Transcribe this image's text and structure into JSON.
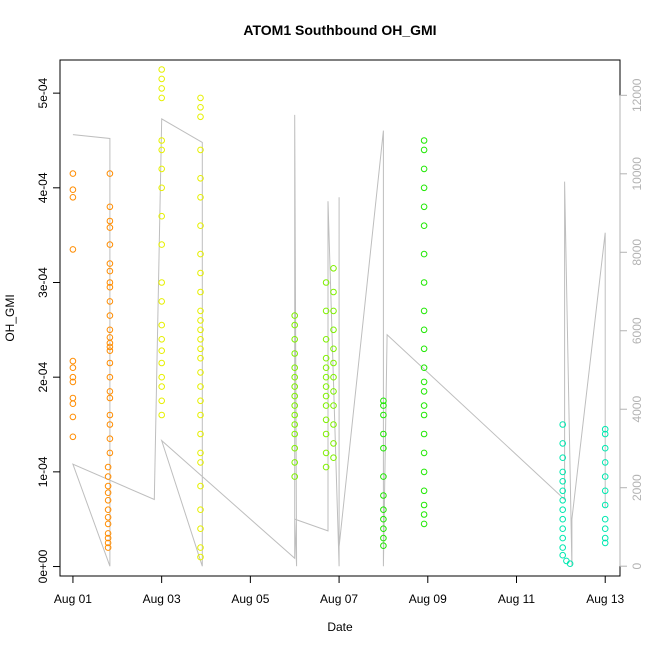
{
  "chart_data": {
    "type": "scatter",
    "title": "ATOM1 Southbound OH_GMI",
    "xlabel": "Date",
    "ylabel": "OH_GMI",
    "x_axis": {
      "type": "date",
      "range": [
        "2016-07-31T17:00",
        "2016-08-13T08:00"
      ],
      "ticks": [
        {
          "value": "2016-08-01",
          "label": "Aug 01"
        },
        {
          "value": "2016-08-03",
          "label": "Aug 03"
        },
        {
          "value": "2016-08-05",
          "label": "Aug 05"
        },
        {
          "value": "2016-08-07",
          "label": "Aug 07"
        },
        {
          "value": "2016-08-09",
          "label": "Aug 09"
        },
        {
          "value": "2016-08-11",
          "label": "Aug 11"
        },
        {
          "value": "2016-08-13",
          "label": "Aug 13"
        }
      ]
    },
    "y_axis": {
      "range": [
        -1e-05,
        0.000535
      ],
      "ticks": [
        {
          "value": 0,
          "label": "0e+00"
        },
        {
          "value": 0.0001,
          "label": "1e-04"
        },
        {
          "value": 0.0002,
          "label": "2e-04"
        },
        {
          "value": 0.0003,
          "label": "3e-04"
        },
        {
          "value": 0.0004,
          "label": "4e-04"
        },
        {
          "value": 0.0005,
          "label": "5e-04"
        }
      ]
    },
    "y2_axis": {
      "range": [
        -250,
        12900
      ],
      "ticks": [
        {
          "value": 0,
          "label": "0"
        },
        {
          "value": 2000,
          "label": "2000"
        },
        {
          "value": 4000,
          "label": "4000"
        },
        {
          "value": 6000,
          "label": "6000"
        },
        {
          "value": 8000,
          "label": "8000"
        },
        {
          "value": 10000,
          "label": "10000"
        },
        {
          "value": 12000,
          "label": "12000"
        }
      ]
    },
    "grid": false,
    "legend": "none",
    "colors": {
      "line": "#bebebe",
      "right_axis": "#b3b3b3"
    },
    "series": [
      {
        "color": "#ff8c00",
        "points": [
          [
            "2016-08-01T00:00",
            0.000415
          ],
          [
            "2016-08-01T00:00",
            0.000398
          ],
          [
            "2016-08-01T00:00",
            0.00039
          ],
          [
            "2016-08-01T00:00",
            0.000335
          ],
          [
            "2016-08-01T00:00",
            0.000217
          ],
          [
            "2016-08-01T00:00",
            0.00021
          ],
          [
            "2016-08-01T00:00",
            0.0002
          ],
          [
            "2016-08-01T00:00",
            0.000195
          ],
          [
            "2016-08-01T00:00",
            0.000178
          ],
          [
            "2016-08-01T00:00",
            0.000172
          ],
          [
            "2016-08-01T00:00",
            0.000158
          ],
          [
            "2016-08-01T00:00",
            0.000137
          ],
          [
            "2016-08-01T20:00",
            0.000415
          ],
          [
            "2016-08-01T20:00",
            0.00038
          ],
          [
            "2016-08-01T20:00",
            0.000365
          ],
          [
            "2016-08-01T20:00",
            0.000358
          ],
          [
            "2016-08-01T20:00",
            0.00034
          ],
          [
            "2016-08-01T20:00",
            0.00032
          ],
          [
            "2016-08-01T20:00",
            0.000312
          ],
          [
            "2016-08-01T20:00",
            0.0003
          ],
          [
            "2016-08-01T20:00",
            0.000295
          ],
          [
            "2016-08-01T20:00",
            0.00028
          ],
          [
            "2016-08-01T20:00",
            0.000265
          ],
          [
            "2016-08-01T20:00",
            0.00025
          ],
          [
            "2016-08-01T20:00",
            0.000242
          ],
          [
            "2016-08-01T20:00",
            0.000236
          ],
          [
            "2016-08-01T20:00",
            0.000232
          ],
          [
            "2016-08-01T20:00",
            0.000228
          ],
          [
            "2016-08-01T20:00",
            0.000215
          ],
          [
            "2016-08-01T20:00",
            0.0002
          ],
          [
            "2016-08-01T20:00",
            0.000185
          ],
          [
            "2016-08-01T20:00",
            0.000178
          ],
          [
            "2016-08-01T20:00",
            0.00016
          ],
          [
            "2016-08-01T20:00",
            0.00015
          ],
          [
            "2016-08-01T20:00",
            0.000135
          ],
          [
            "2016-08-01T20:00",
            0.00012
          ],
          [
            "2016-08-01T19:00",
            0.000105
          ],
          [
            "2016-08-01T19:00",
            9.5e-05
          ],
          [
            "2016-08-01T19:00",
            8.5e-05
          ],
          [
            "2016-08-01T19:00",
            7.8e-05
          ],
          [
            "2016-08-01T19:00",
            7e-05
          ],
          [
            "2016-08-01T19:00",
            6e-05
          ],
          [
            "2016-08-01T19:00",
            5.2e-05
          ],
          [
            "2016-08-01T19:00",
            4.5e-05
          ],
          [
            "2016-08-01T19:00",
            3.5e-05
          ],
          [
            "2016-08-01T19:00",
            3e-05
          ],
          [
            "2016-08-01T19:00",
            2.5e-05
          ],
          [
            "2016-08-01T19:00",
            2e-05
          ]
        ]
      },
      {
        "color": "#e6f000",
        "points": [
          [
            "2016-08-03T00:00",
            0.000525
          ],
          [
            "2016-08-03T00:00",
            0.000515
          ],
          [
            "2016-08-03T00:00",
            0.000505
          ],
          [
            "2016-08-03T00:00",
            0.000495
          ],
          [
            "2016-08-03T00:00",
            0.00045
          ],
          [
            "2016-08-03T00:00",
            0.00044
          ],
          [
            "2016-08-03T00:00",
            0.00042
          ],
          [
            "2016-08-03T00:00",
            0.0004
          ],
          [
            "2016-08-03T00:00",
            0.00037
          ],
          [
            "2016-08-03T00:00",
            0.00034
          ],
          [
            "2016-08-03T00:00",
            0.0003
          ],
          [
            "2016-08-03T00:00",
            0.00028
          ],
          [
            "2016-08-03T00:00",
            0.000255
          ],
          [
            "2016-08-03T00:00",
            0.00024
          ],
          [
            "2016-08-03T00:00",
            0.000228
          ],
          [
            "2016-08-03T00:00",
            0.000215
          ],
          [
            "2016-08-03T00:00",
            0.0002
          ],
          [
            "2016-08-03T00:00",
            0.00019
          ],
          [
            "2016-08-03T00:00",
            0.000175
          ],
          [
            "2016-08-03T00:00",
            0.00016
          ],
          [
            "2016-08-03T21:00",
            0.000495
          ],
          [
            "2016-08-03T21:00",
            0.000485
          ],
          [
            "2016-08-03T21:00",
            0.000475
          ],
          [
            "2016-08-03T21:00",
            0.00044
          ],
          [
            "2016-08-03T21:00",
            0.00041
          ],
          [
            "2016-08-03T21:00",
            0.00039
          ],
          [
            "2016-08-03T21:00",
            0.00036
          ],
          [
            "2016-08-03T21:00",
            0.00033
          ],
          [
            "2016-08-03T21:00",
            0.00031
          ],
          [
            "2016-08-03T21:00",
            0.00029
          ],
          [
            "2016-08-03T21:00",
            0.00027
          ],
          [
            "2016-08-03T21:00",
            0.00026
          ],
          [
            "2016-08-03T21:00",
            0.00025
          ],
          [
            "2016-08-03T21:00",
            0.00024
          ],
          [
            "2016-08-03T21:00",
            0.00023
          ],
          [
            "2016-08-03T21:00",
            0.00022
          ],
          [
            "2016-08-03T21:00",
            0.000205
          ],
          [
            "2016-08-03T21:00",
            0.00019
          ],
          [
            "2016-08-03T21:00",
            0.000175
          ],
          [
            "2016-08-03T21:00",
            0.00016
          ],
          [
            "2016-08-03T21:00",
            0.00014
          ],
          [
            "2016-08-03T21:00",
            0.00012
          ],
          [
            "2016-08-03T21:00",
            0.00011
          ],
          [
            "2016-08-03T21:00",
            8.5e-05
          ],
          [
            "2016-08-03T21:00",
            6e-05
          ],
          [
            "2016-08-03T21:00",
            4e-05
          ],
          [
            "2016-08-03T21:00",
            2e-05
          ],
          [
            "2016-08-03T21:00",
            1e-05
          ]
        ]
      },
      {
        "color": "#7ff000",
        "points": [
          [
            "2016-08-06T00:00",
            0.000265
          ],
          [
            "2016-08-06T00:00",
            0.000255
          ],
          [
            "2016-08-06T00:00",
            0.00024
          ],
          [
            "2016-08-06T00:00",
            0.000225
          ],
          [
            "2016-08-06T00:00",
            0.00021
          ],
          [
            "2016-08-06T00:00",
            0.0002
          ],
          [
            "2016-08-06T00:00",
            0.00019
          ],
          [
            "2016-08-06T00:00",
            0.00018
          ],
          [
            "2016-08-06T00:00",
            0.00017
          ],
          [
            "2016-08-06T00:00",
            0.00016
          ],
          [
            "2016-08-06T00:00",
            0.00015
          ],
          [
            "2016-08-06T00:00",
            0.00014
          ],
          [
            "2016-08-06T00:00",
            0.000125
          ],
          [
            "2016-08-06T00:00",
            0.00011
          ],
          [
            "2016-08-06T00:00",
            9.5e-05
          ],
          [
            "2016-08-06T17:00",
            0.0003
          ],
          [
            "2016-08-06T17:00",
            0.00027
          ],
          [
            "2016-08-06T17:00",
            0.00024
          ],
          [
            "2016-08-06T17:00",
            0.00022
          ],
          [
            "2016-08-06T17:00",
            0.00021
          ],
          [
            "2016-08-06T17:00",
            0.0002
          ],
          [
            "2016-08-06T17:00",
            0.00019
          ],
          [
            "2016-08-06T17:00",
            0.00018
          ],
          [
            "2016-08-06T17:00",
            0.00017
          ],
          [
            "2016-08-06T17:00",
            0.000155
          ],
          [
            "2016-08-06T17:00",
            0.00014
          ],
          [
            "2016-08-06T17:00",
            0.00012
          ],
          [
            "2016-08-06T17:00",
            0.000105
          ],
          [
            "2016-08-06T21:00",
            0.000315
          ],
          [
            "2016-08-06T21:00",
            0.00029
          ],
          [
            "2016-08-06T21:00",
            0.00027
          ],
          [
            "2016-08-06T21:00",
            0.00025
          ],
          [
            "2016-08-06T21:00",
            0.00023
          ],
          [
            "2016-08-06T21:00",
            0.000215
          ],
          [
            "2016-08-06T21:00",
            0.0002
          ],
          [
            "2016-08-06T21:00",
            0.000185
          ],
          [
            "2016-08-06T21:00",
            0.00017
          ],
          [
            "2016-08-06T21:00",
            0.00015
          ],
          [
            "2016-08-06T21:00",
            0.00013
          ],
          [
            "2016-08-06T21:00",
            0.000115
          ]
        ]
      },
      {
        "color": "#1ee800",
        "points": [
          [
            "2016-08-08T00:00",
            0.000175
          ],
          [
            "2016-08-08T00:00",
            0.00017
          ],
          [
            "2016-08-08T00:00",
            0.00016
          ],
          [
            "2016-08-08T00:00",
            0.00014
          ],
          [
            "2016-08-08T00:00",
            0.000125
          ],
          [
            "2016-08-08T00:00",
            9.5e-05
          ],
          [
            "2016-08-08T00:00",
            7.5e-05
          ],
          [
            "2016-08-08T00:00",
            6e-05
          ],
          [
            "2016-08-08T00:00",
            5e-05
          ],
          [
            "2016-08-08T00:00",
            4e-05
          ],
          [
            "2016-08-08T00:00",
            3e-05
          ],
          [
            "2016-08-08T00:00",
            2.2e-05
          ],
          [
            "2016-08-08T22:00",
            0.00045
          ],
          [
            "2016-08-08T22:00",
            0.00044
          ],
          [
            "2016-08-08T22:00",
            0.00042
          ],
          [
            "2016-08-08T22:00",
            0.0004
          ],
          [
            "2016-08-08T22:00",
            0.00038
          ],
          [
            "2016-08-08T22:00",
            0.00036
          ],
          [
            "2016-08-08T22:00",
            0.00033
          ],
          [
            "2016-08-08T22:00",
            0.0003
          ],
          [
            "2016-08-08T22:00",
            0.00027
          ],
          [
            "2016-08-08T22:00",
            0.00025
          ],
          [
            "2016-08-08T22:00",
            0.00023
          ],
          [
            "2016-08-08T22:00",
            0.00021
          ],
          [
            "2016-08-08T22:00",
            0.000195
          ],
          [
            "2016-08-08T22:00",
            0.000185
          ],
          [
            "2016-08-08T22:00",
            0.00017
          ],
          [
            "2016-08-08T22:00",
            0.00016
          ],
          [
            "2016-08-08T22:00",
            0.00014
          ],
          [
            "2016-08-08T22:00",
            0.00012
          ],
          [
            "2016-08-08T22:00",
            0.0001
          ],
          [
            "2016-08-08T22:00",
            8e-05
          ],
          [
            "2016-08-08T22:00",
            6.5e-05
          ],
          [
            "2016-08-08T22:00",
            5.5e-05
          ],
          [
            "2016-08-08T22:00",
            4.5e-05
          ]
        ]
      },
      {
        "color": "#00e8b0",
        "points": [
          [
            "2016-08-12T01:00",
            0.00015
          ],
          [
            "2016-08-12T01:00",
            0.00013
          ],
          [
            "2016-08-12T01:00",
            0.000115
          ],
          [
            "2016-08-12T01:00",
            0.0001
          ],
          [
            "2016-08-12T01:00",
            9e-05
          ],
          [
            "2016-08-12T01:00",
            8e-05
          ],
          [
            "2016-08-12T01:00",
            7e-05
          ],
          [
            "2016-08-12T01:00",
            6e-05
          ],
          [
            "2016-08-12T01:00",
            5e-05
          ],
          [
            "2016-08-12T01:00",
            4e-05
          ],
          [
            "2016-08-12T01:00",
            3e-05
          ],
          [
            "2016-08-12T01:00",
            2e-05
          ],
          [
            "2016-08-12T01:00",
            1.2e-05
          ],
          [
            "2016-08-12T03:00",
            6e-06
          ],
          [
            "2016-08-12T05:00",
            3e-06
          ],
          [
            "2016-08-13T00:00",
            0.000145
          ],
          [
            "2016-08-13T00:00",
            0.00014
          ],
          [
            "2016-08-13T00:00",
            0.000125
          ],
          [
            "2016-08-13T00:00",
            0.00011
          ],
          [
            "2016-08-13T00:00",
            9.5e-05
          ],
          [
            "2016-08-13T00:00",
            8e-05
          ],
          [
            "2016-08-13T00:00",
            6.5e-05
          ],
          [
            "2016-08-13T00:00",
            5e-05
          ],
          [
            "2016-08-13T00:00",
            4e-05
          ],
          [
            "2016-08-13T00:00",
            3e-05
          ],
          [
            "2016-08-13T00:00",
            2.5e-05
          ]
        ]
      }
    ],
    "secondary_line": {
      "axis": "right",
      "color": "#bebebe",
      "points": [
        [
          "2016-08-01T00:00",
          11000
        ],
        [
          "2016-08-01T20:00",
          10900
        ],
        [
          "2016-08-01T20:00",
          0
        ],
        [
          "2016-08-01T00:00",
          2600
        ],
        [
          "2016-08-02T20:00",
          1700
        ],
        [
          "2016-08-03T00:00",
          11400
        ],
        [
          "2016-08-03T22:00",
          10800
        ],
        [
          "2016-08-03T22:00",
          0
        ],
        [
          "2016-08-03T00:00",
          3200
        ],
        [
          "2016-08-06T00:00",
          200
        ],
        [
          "2016-08-06T00:00",
          11500
        ],
        [
          "2016-08-06T01:00",
          0
        ],
        [
          "2016-08-06T00:00",
          1200
        ],
        [
          "2016-08-06T18:00",
          900
        ],
        [
          "2016-08-06T18:00",
          9300
        ],
        [
          "2016-08-07T00:00",
          0
        ],
        [
          "2016-08-07T00:00",
          9400
        ],
        [
          "2016-08-07T00:00",
          500
        ],
        [
          "2016-08-08T00:00",
          11100
        ],
        [
          "2016-08-08T00:00",
          0
        ],
        [
          "2016-08-08T02:00",
          5900
        ],
        [
          "2016-08-12T02:00",
          1700
        ],
        [
          "2016-08-12T02:00",
          9800
        ],
        [
          "2016-08-12T06:00",
          0
        ],
        [
          "2016-08-12T06:00",
          1200
        ],
        [
          "2016-08-13T00:00",
          8500
        ],
        [
          "2016-08-13T00:00",
          1500
        ]
      ]
    }
  }
}
